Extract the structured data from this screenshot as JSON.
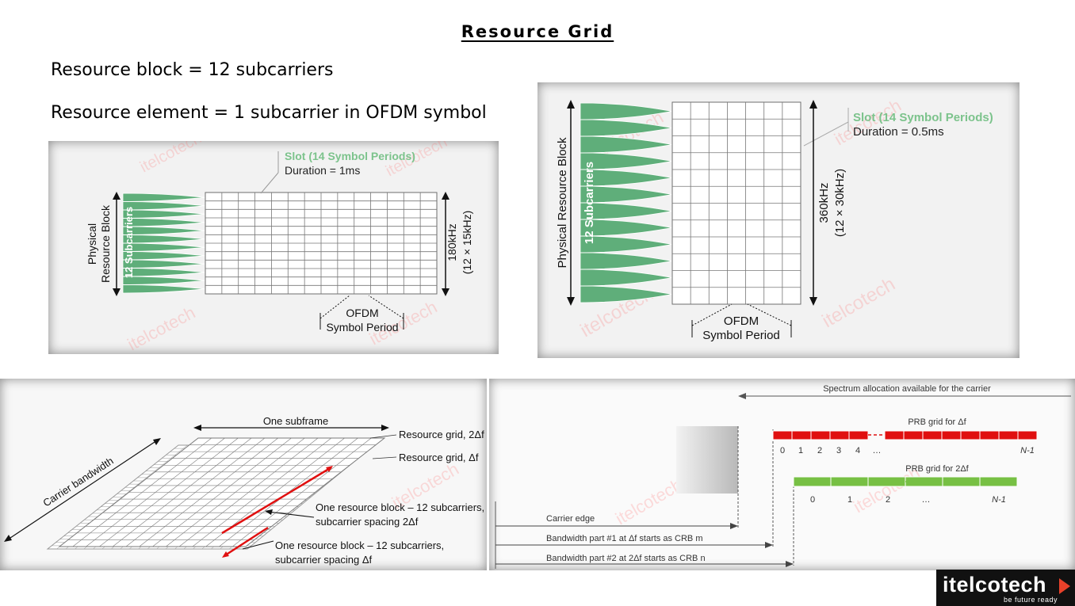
{
  "title": "Resource Grid",
  "bullets": [
    "Resource block = 12 subcarriers",
    "Resource element = 1 subcarrier in OFDM symbol"
  ],
  "watermark": "itelcotech",
  "diagram_15khz": {
    "slot_label": "Slot (14 Symbol Periods)",
    "duration": "Duration = 1ms",
    "prb_label_1": "Physical",
    "prb_label_2": "Resource Block",
    "subcarriers": "12 Subcarriers",
    "bw_1": "180kHz",
    "bw_2": "(12 × 15kHz)",
    "ofdm_1": "OFDM",
    "ofdm_2": "Symbol Period"
  },
  "diagram_30khz": {
    "slot_label": "Slot (14 Symbol Periods)",
    "duration": "Duration = 0.5ms",
    "prb_label": "Physical Resource Block",
    "subcarriers": "12 Subcarriers",
    "bw_1": "360kHz",
    "bw_2": "(12 × 30kHz)",
    "ofdm_1": "OFDM",
    "ofdm_2": "Symbol Period"
  },
  "diagram_grids": {
    "carrier_bandwidth": "Carrier bandwidth",
    "one_subframe": "One subframe",
    "grid_2df": "Resource grid, 2Δf",
    "grid_df": "Resource grid, Δf",
    "rb_2df_1": "One resource block – 12 subcarriers,",
    "rb_2df_2": "subcarrier spacing 2Δf",
    "rb_df_1": "One resource block – 12 subcarriers,",
    "rb_df_2": "subcarrier spacing Δf"
  },
  "diagram_bwp": {
    "spectrum": "Spectrum allocation available  for the carrier",
    "prb_df": "PRB grid for Δf",
    "prb_2df": "PRB grid for 2Δf",
    "df_indices": [
      "0",
      "1",
      "2",
      "3",
      "4",
      "…",
      "N-1"
    ],
    "df2_indices": [
      "0",
      "1",
      "2",
      "…",
      "N-1"
    ],
    "carrier_edge": "Carrier edge",
    "bwp1": "Bandwidth part #1 at Δf starts as CRB m",
    "bwp2": "Bandwidth part #2 at 2Δf starts as CRB n"
  },
  "logo": {
    "name": "itelcotech",
    "tagline": "be future ready"
  },
  "colors": {
    "green": "#5fae7a",
    "red": "#e01010",
    "lime": "#77c044",
    "accent": "#e8412a"
  }
}
